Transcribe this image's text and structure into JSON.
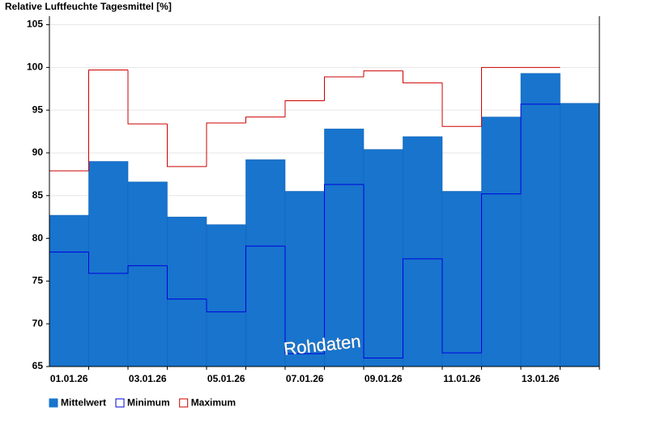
{
  "chart_data": {
    "type": "bar",
    "title": "Relative Luftfeuchte Tagesmittel [%]",
    "watermark": "Rohdaten",
    "categories": [
      "01.01.26",
      null,
      "03.01.26",
      null,
      "05.01.26",
      null,
      "07.01.26",
      null,
      "09.01.26",
      null,
      "11.01.26",
      null,
      "13.01.26",
      null
    ],
    "series": [
      {
        "name": "Mittelwert",
        "color": "#1874cd",
        "kind": "bar",
        "values": [
          82.7,
          89.0,
          86.6,
          82.5,
          81.6,
          89.2,
          85.5,
          92.8,
          90.4,
          91.9,
          85.5,
          94.2,
          99.3,
          95.8
        ]
      },
      {
        "name": "Minimum",
        "color": "#0000e0",
        "kind": "step",
        "values": [
          78.4,
          75.9,
          76.8,
          72.9,
          71.4,
          79.1,
          66.5,
          86.3,
          66.0,
          77.6,
          66.6,
          85.2,
          95.7,
          null
        ]
      },
      {
        "name": "Maximum",
        "color": "#cc0000",
        "kind": "step",
        "values": [
          87.9,
          99.7,
          93.4,
          88.4,
          93.5,
          94.2,
          96.1,
          98.9,
          99.6,
          98.2,
          93.1,
          100.0,
          100.0,
          null
        ]
      }
    ],
    "ylim": [
      65,
      106
    ],
    "yticks": [
      65,
      70,
      75,
      80,
      85,
      90,
      95,
      100,
      105
    ],
    "grid": true
  }
}
